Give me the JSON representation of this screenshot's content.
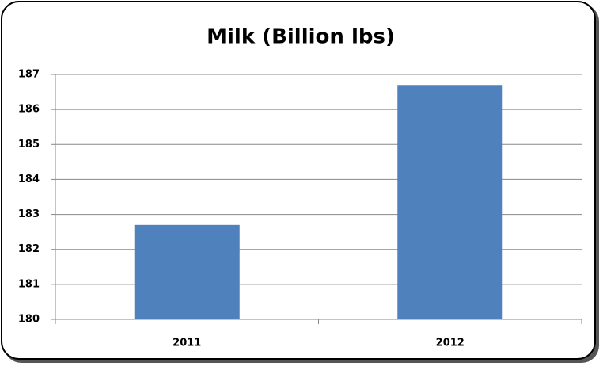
{
  "chart_data": {
    "type": "bar",
    "title": "Milk (Billion lbs)",
    "categories": [
      "2011",
      "2012"
    ],
    "values": [
      182.7,
      186.7
    ],
    "color": "#4f81bd",
    "ylim": [
      180,
      187
    ],
    "yticks": [
      180,
      181,
      182,
      183,
      184,
      185,
      186,
      187
    ],
    "grid": true
  }
}
